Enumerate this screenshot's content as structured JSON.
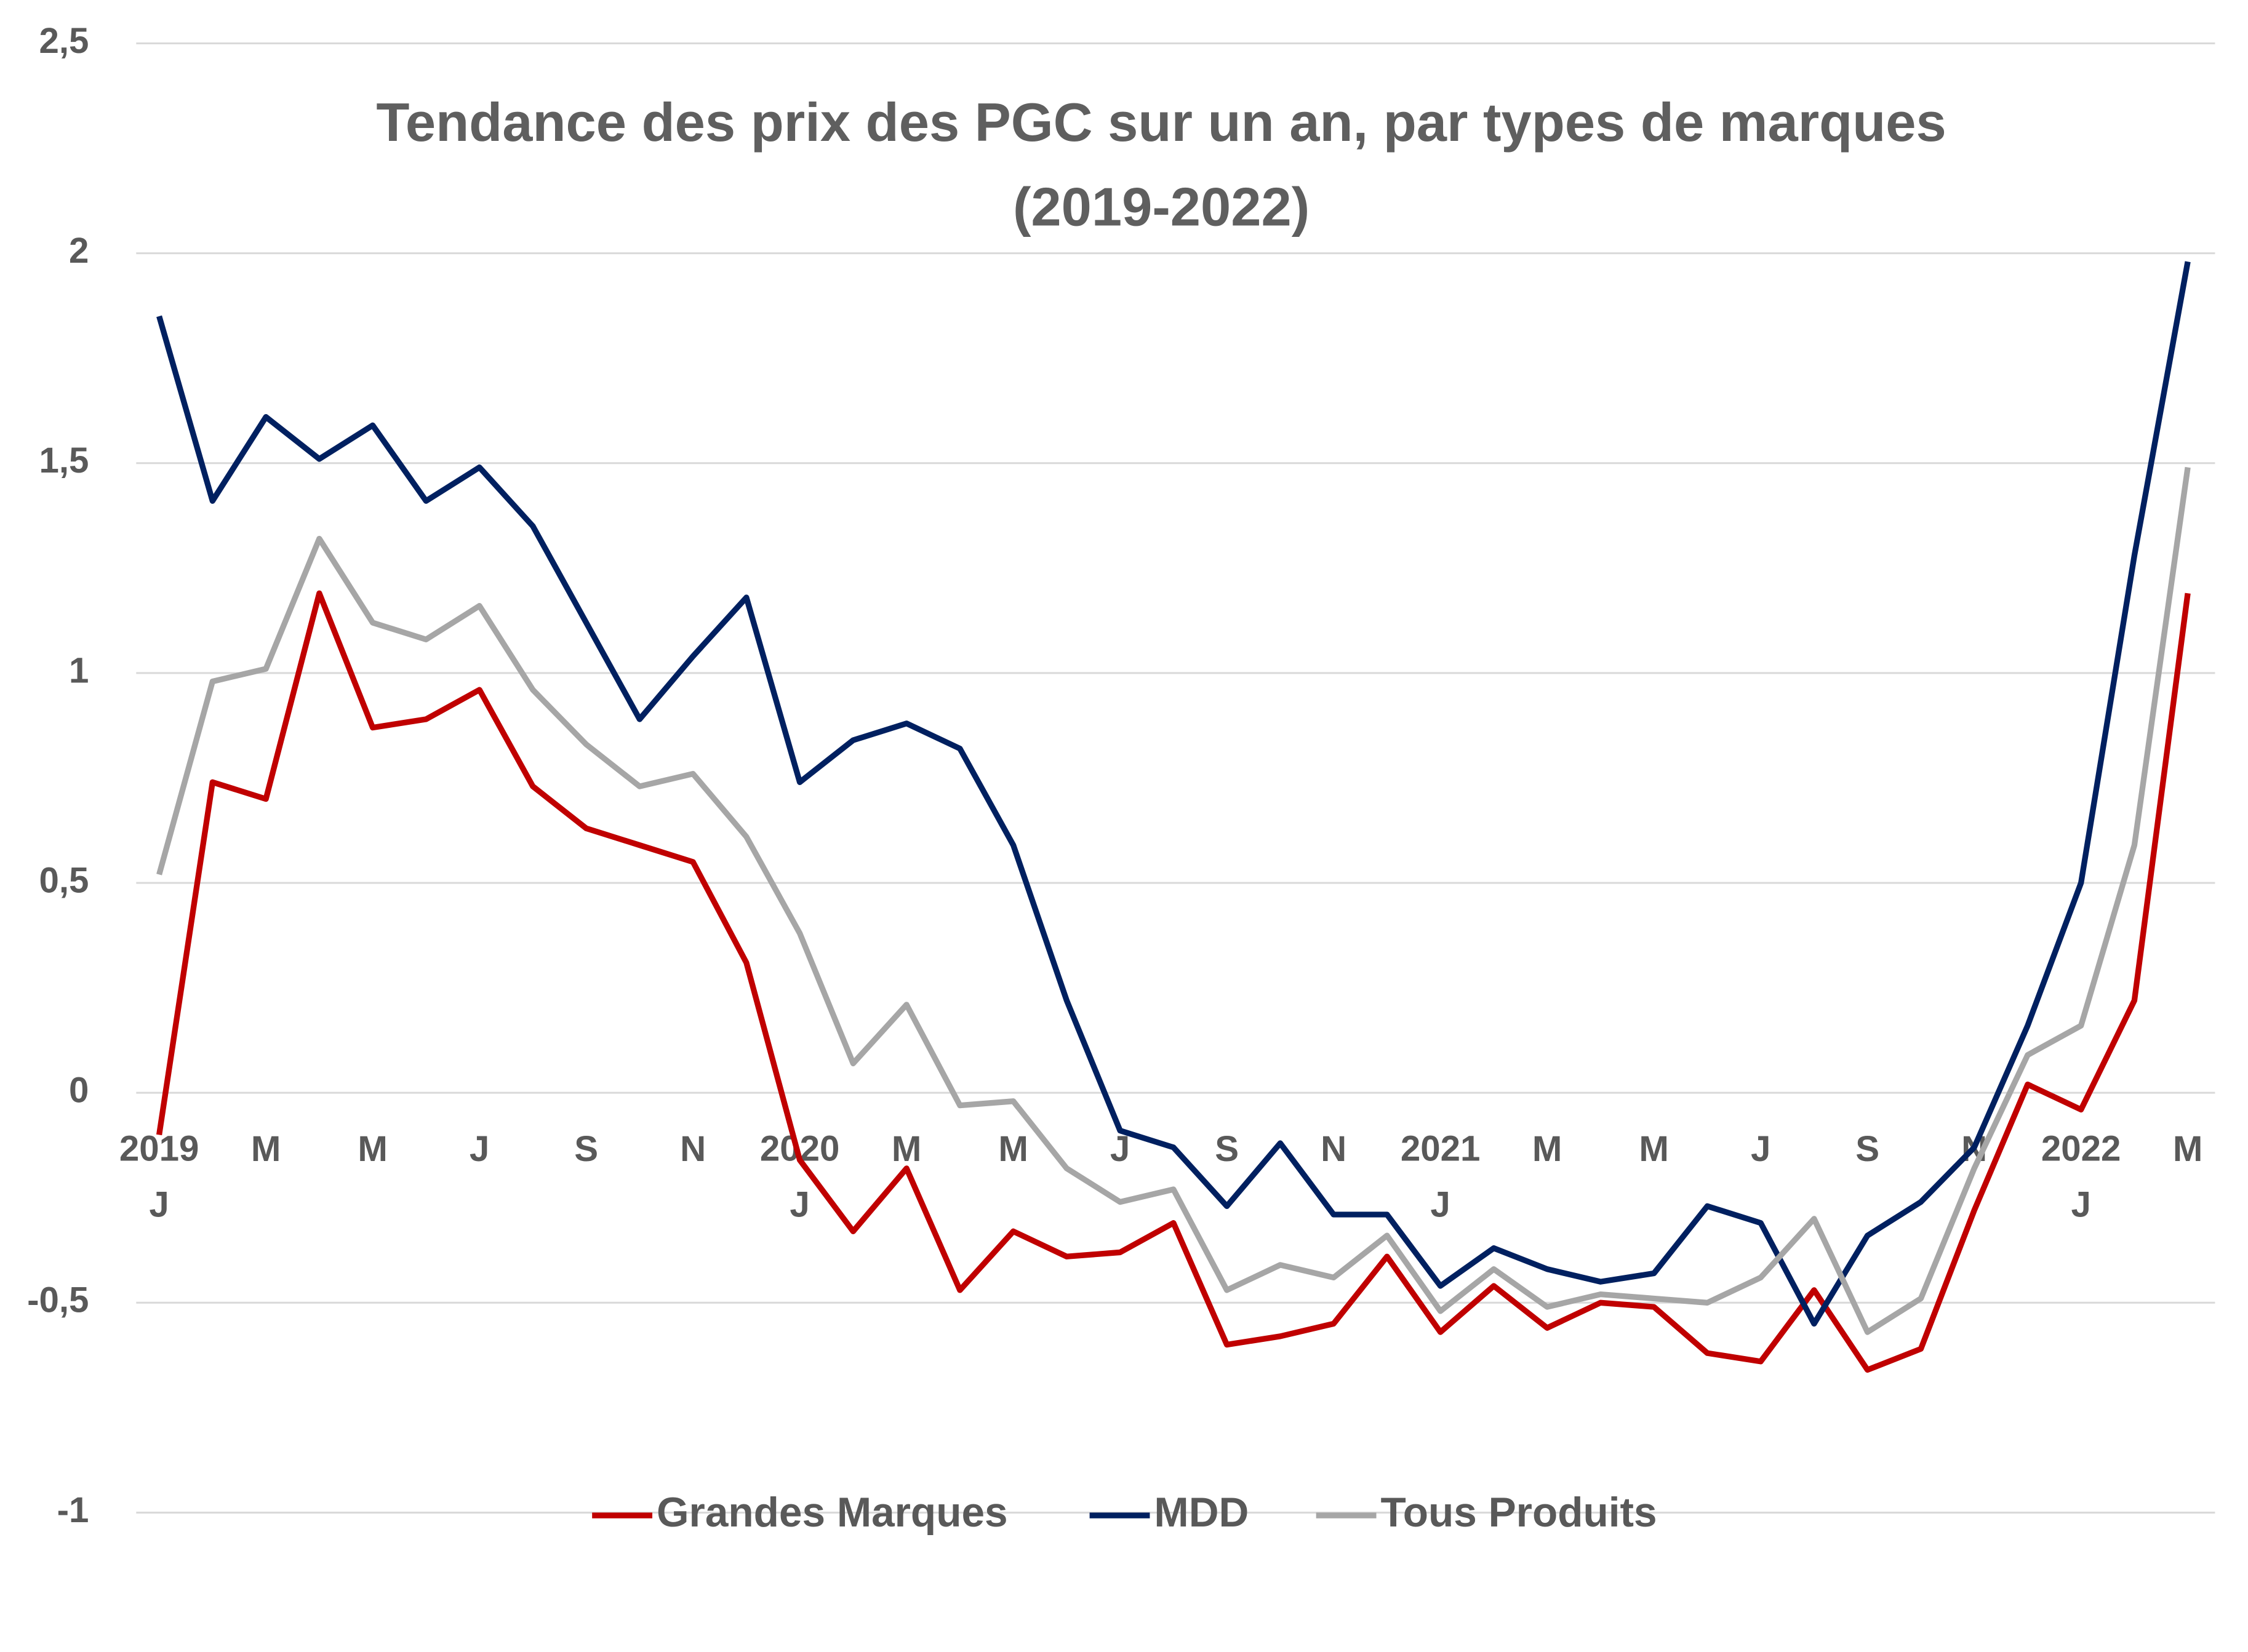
{
  "chart_data": {
    "type": "line",
    "title": "Tendance des prix des PGC sur un an, par types de marques",
    "subtitle": "(2019-2022)",
    "categories": [
      "2019\nJ",
      null,
      "M",
      null,
      "M",
      null,
      "J",
      null,
      "S",
      null,
      "N",
      null,
      "2020\nJ",
      null,
      "M",
      null,
      "M",
      null,
      "J",
      null,
      "S",
      null,
      "N",
      null,
      "2021\nJ",
      null,
      "M",
      null,
      "M",
      null,
      "J",
      null,
      "S",
      null,
      "N",
      null,
      "2022\nJ",
      null,
      "M"
    ],
    "series": [
      {
        "name": "Grandes Marques",
        "color": "#c00000",
        "values": [
          -0.1,
          0.74,
          0.7,
          1.19,
          0.87,
          0.89,
          0.96,
          0.73,
          0.63,
          0.59,
          0.55,
          0.31,
          -0.16,
          -0.33,
          -0.18,
          -0.47,
          -0.33,
          -0.39,
          -0.38,
          -0.31,
          -0.6,
          -0.58,
          -0.55,
          -0.39,
          -0.57,
          -0.46,
          -0.56,
          -0.5,
          -0.51,
          -0.62,
          -0.64,
          -0.47,
          -0.66,
          -0.61,
          -0.28,
          0.02,
          -0.04,
          0.22,
          1.19
        ]
      },
      {
        "name": "MDD",
        "color": "#002060",
        "values": [
          1.85,
          1.41,
          1.61,
          1.51,
          1.59,
          1.41,
          1.49,
          1.35,
          1.12,
          0.89,
          1.04,
          1.18,
          0.74,
          0.84,
          0.88,
          0.82,
          0.59,
          0.22,
          -0.09,
          -0.13,
          -0.27,
          -0.12,
          -0.29,
          -0.29,
          -0.46,
          -0.37,
          -0.42,
          -0.45,
          -0.43,
          -0.27,
          -0.31,
          -0.55,
          -0.34,
          -0.26,
          -0.13,
          0.16,
          0.5,
          1.28,
          1.98
        ]
      },
      {
        "name": "Tous Produits",
        "color": "#a6a6a6",
        "values": [
          0.52,
          0.98,
          1.01,
          1.32,
          1.12,
          1.08,
          1.16,
          0.96,
          0.83,
          0.73,
          0.76,
          0.61,
          0.38,
          0.07,
          0.21,
          -0.03,
          -0.02,
          -0.18,
          -0.26,
          -0.23,
          -0.47,
          -0.41,
          -0.44,
          -0.34,
          -0.52,
          -0.42,
          -0.51,
          -0.48,
          -0.49,
          -0.5,
          -0.44,
          -0.3,
          -0.57,
          -0.49,
          -0.18,
          0.09,
          0.16,
          0.59,
          1.49
        ]
      }
    ],
    "ylim": [
      -1,
      2.5
    ],
    "yticks": [
      -1,
      {
        "value": -0.5,
        "label": "-0,5"
      },
      0,
      {
        "value": 0.5,
        "label": "0,5"
      },
      1,
      {
        "value": 1.5,
        "label": "1,5"
      },
      2,
      {
        "value": 2.5,
        "label": "2,5"
      }
    ],
    "grid": true,
    "legend": "bottom"
  }
}
